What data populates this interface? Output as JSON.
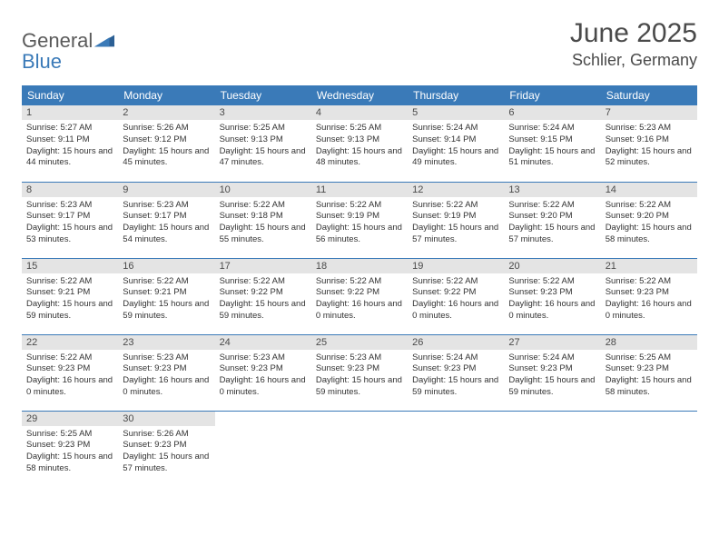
{
  "logo": {
    "text_general": "General",
    "text_blue": "Blue"
  },
  "header": {
    "month_title": "June 2025",
    "location": "Schlier, Germany"
  },
  "colors": {
    "header_bg": "#3a7ab8",
    "header_text": "#ffffff",
    "daynum_bg": "#e4e4e4",
    "daynum_text": "#4a4a4a",
    "border": "#3a7ab8",
    "body_text": "#333333",
    "title_text": "#4a4a4a"
  },
  "weekdays": [
    "Sunday",
    "Monday",
    "Tuesday",
    "Wednesday",
    "Thursday",
    "Friday",
    "Saturday"
  ],
  "days": [
    {
      "n": "1",
      "sunrise": "5:27 AM",
      "sunset": "9:11 PM",
      "daylight": "15 hours and 44 minutes."
    },
    {
      "n": "2",
      "sunrise": "5:26 AM",
      "sunset": "9:12 PM",
      "daylight": "15 hours and 45 minutes."
    },
    {
      "n": "3",
      "sunrise": "5:25 AM",
      "sunset": "9:13 PM",
      "daylight": "15 hours and 47 minutes."
    },
    {
      "n": "4",
      "sunrise": "5:25 AM",
      "sunset": "9:13 PM",
      "daylight": "15 hours and 48 minutes."
    },
    {
      "n": "5",
      "sunrise": "5:24 AM",
      "sunset": "9:14 PM",
      "daylight": "15 hours and 49 minutes."
    },
    {
      "n": "6",
      "sunrise": "5:24 AM",
      "sunset": "9:15 PM",
      "daylight": "15 hours and 51 minutes."
    },
    {
      "n": "7",
      "sunrise": "5:23 AM",
      "sunset": "9:16 PM",
      "daylight": "15 hours and 52 minutes."
    },
    {
      "n": "8",
      "sunrise": "5:23 AM",
      "sunset": "9:17 PM",
      "daylight": "15 hours and 53 minutes."
    },
    {
      "n": "9",
      "sunrise": "5:23 AM",
      "sunset": "9:17 PM",
      "daylight": "15 hours and 54 minutes."
    },
    {
      "n": "10",
      "sunrise": "5:22 AM",
      "sunset": "9:18 PM",
      "daylight": "15 hours and 55 minutes."
    },
    {
      "n": "11",
      "sunrise": "5:22 AM",
      "sunset": "9:19 PM",
      "daylight": "15 hours and 56 minutes."
    },
    {
      "n": "12",
      "sunrise": "5:22 AM",
      "sunset": "9:19 PM",
      "daylight": "15 hours and 57 minutes."
    },
    {
      "n": "13",
      "sunrise": "5:22 AM",
      "sunset": "9:20 PM",
      "daylight": "15 hours and 57 minutes."
    },
    {
      "n": "14",
      "sunrise": "5:22 AM",
      "sunset": "9:20 PM",
      "daylight": "15 hours and 58 minutes."
    },
    {
      "n": "15",
      "sunrise": "5:22 AM",
      "sunset": "9:21 PM",
      "daylight": "15 hours and 59 minutes."
    },
    {
      "n": "16",
      "sunrise": "5:22 AM",
      "sunset": "9:21 PM",
      "daylight": "15 hours and 59 minutes."
    },
    {
      "n": "17",
      "sunrise": "5:22 AM",
      "sunset": "9:22 PM",
      "daylight": "15 hours and 59 minutes."
    },
    {
      "n": "18",
      "sunrise": "5:22 AM",
      "sunset": "9:22 PM",
      "daylight": "16 hours and 0 minutes."
    },
    {
      "n": "19",
      "sunrise": "5:22 AM",
      "sunset": "9:22 PM",
      "daylight": "16 hours and 0 minutes."
    },
    {
      "n": "20",
      "sunrise": "5:22 AM",
      "sunset": "9:23 PM",
      "daylight": "16 hours and 0 minutes."
    },
    {
      "n": "21",
      "sunrise": "5:22 AM",
      "sunset": "9:23 PM",
      "daylight": "16 hours and 0 minutes."
    },
    {
      "n": "22",
      "sunrise": "5:22 AM",
      "sunset": "9:23 PM",
      "daylight": "16 hours and 0 minutes."
    },
    {
      "n": "23",
      "sunrise": "5:23 AM",
      "sunset": "9:23 PM",
      "daylight": "16 hours and 0 minutes."
    },
    {
      "n": "24",
      "sunrise": "5:23 AM",
      "sunset": "9:23 PM",
      "daylight": "16 hours and 0 minutes."
    },
    {
      "n": "25",
      "sunrise": "5:23 AM",
      "sunset": "9:23 PM",
      "daylight": "15 hours and 59 minutes."
    },
    {
      "n": "26",
      "sunrise": "5:24 AM",
      "sunset": "9:23 PM",
      "daylight": "15 hours and 59 minutes."
    },
    {
      "n": "27",
      "sunrise": "5:24 AM",
      "sunset": "9:23 PM",
      "daylight": "15 hours and 59 minutes."
    },
    {
      "n": "28",
      "sunrise": "5:25 AM",
      "sunset": "9:23 PM",
      "daylight": "15 hours and 58 minutes."
    },
    {
      "n": "29",
      "sunrise": "5:25 AM",
      "sunset": "9:23 PM",
      "daylight": "15 hours and 58 minutes."
    },
    {
      "n": "30",
      "sunrise": "5:26 AM",
      "sunset": "9:23 PM",
      "daylight": "15 hours and 57 minutes."
    }
  ],
  "labels": {
    "sunrise": "Sunrise:",
    "sunset": "Sunset:",
    "daylight": "Daylight:"
  },
  "layout": {
    "start_weekday": 0,
    "total_cells": 35
  }
}
